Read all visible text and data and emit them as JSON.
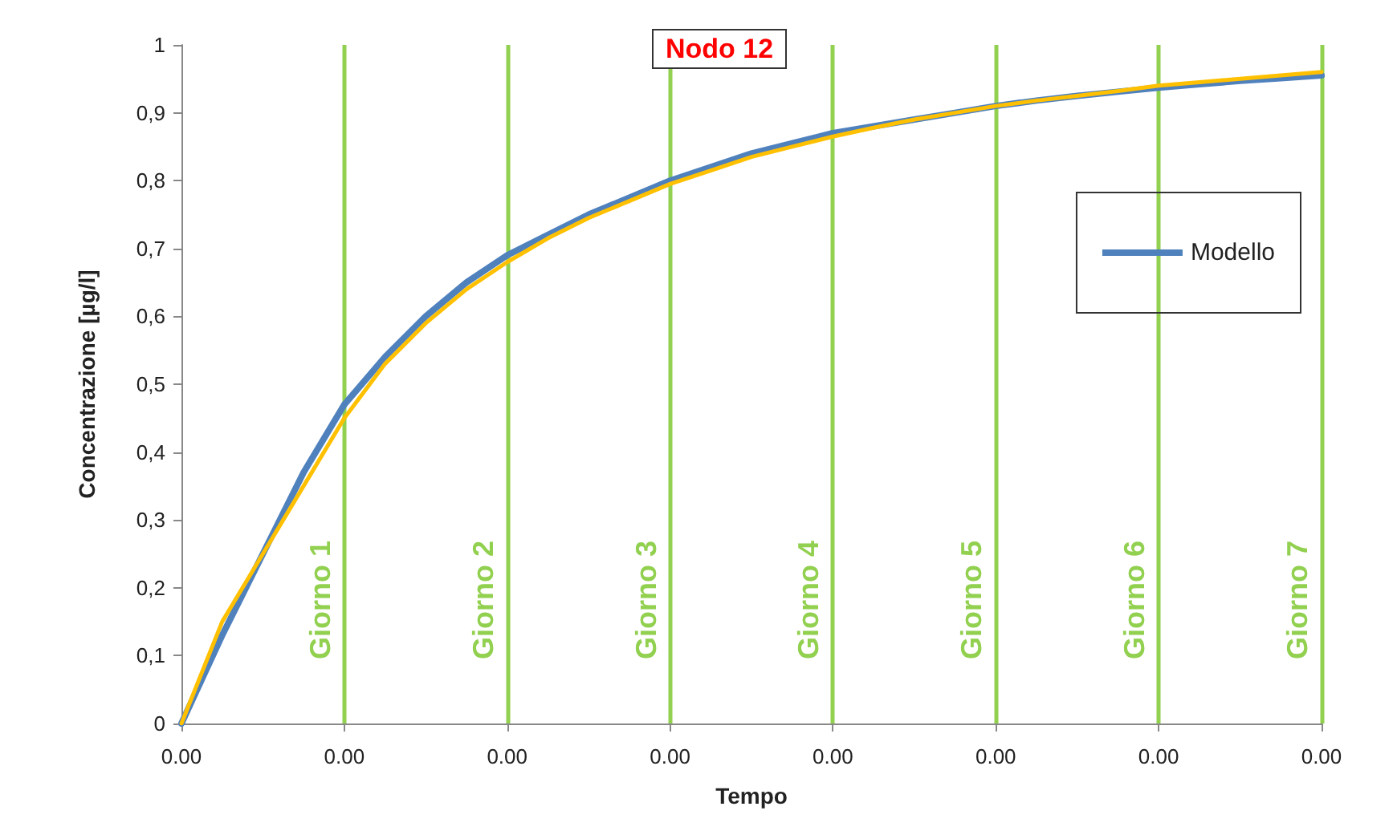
{
  "chart_data": {
    "type": "line",
    "title": "Nodo 12",
    "xlabel": "Tempo",
    "ylabel": "Concentrazione [µg/l]",
    "categories": [
      "0.00",
      null,
      null,
      null,
      "0.00",
      null,
      null,
      null,
      "0.00",
      null,
      null,
      null,
      "0.00",
      null,
      null,
      null,
      "0.00",
      null,
      null,
      null,
      "0.00",
      null,
      null,
      null,
      "0.00",
      null,
      null,
      null,
      "0.00"
    ],
    "ylim": [
      0,
      1
    ],
    "yticks": [
      {
        "value": 0,
        "label": "0"
      },
      {
        "value": 0.1,
        "label": "0,1"
      },
      {
        "value": 0.2,
        "label": "0,2"
      },
      {
        "value": 0.3,
        "label": "0,3"
      },
      {
        "value": 0.4,
        "label": "0,4"
      },
      {
        "value": 0.5,
        "label": "0,5"
      },
      {
        "value": 0.6,
        "label": "0,6"
      },
      {
        "value": 0.7,
        "label": "0,7"
      },
      {
        "value": 0.8,
        "label": "0,8"
      },
      {
        "value": 0.9,
        "label": "0,9"
      },
      {
        "value": 1,
        "label": "1"
      }
    ],
    "grid": "x",
    "annotations": [
      "Giorno 1",
      "Giorno 2",
      "Giorno 3",
      "Giorno 4",
      "Giorno 5",
      "Giorno 6",
      "Giorno 7"
    ],
    "legend": "right",
    "marker": "none",
    "line_style": "solid",
    "series": [
      {
        "name": "Modello",
        "color": "#4f81bd",
        "values": [
          0,
          0.13,
          0.25,
          0.37,
          0.47,
          0.54,
          0.6,
          0.65,
          0.69,
          0.72,
          0.75,
          0.775,
          0.8,
          0.82,
          0.84,
          0.855,
          0.87,
          0.88,
          0.89,
          0.9,
          0.91,
          0.918,
          0.925,
          0.931,
          0.937,
          0.942,
          0.947,
          0.951,
          0.955
        ]
      },
      {
        "color": "#ffc000",
        "values": [
          0,
          0.15,
          0.25,
          0.35,
          0.45,
          0.53,
          0.59,
          0.64,
          0.68,
          0.715,
          0.745,
          0.77,
          0.795,
          0.815,
          0.835,
          0.85,
          0.865,
          0.878,
          0.89,
          0.9,
          0.91,
          0.918,
          0.925,
          0.932,
          0.94,
          0.945,
          0.95,
          0.955,
          0.96
        ]
      }
    ]
  }
}
